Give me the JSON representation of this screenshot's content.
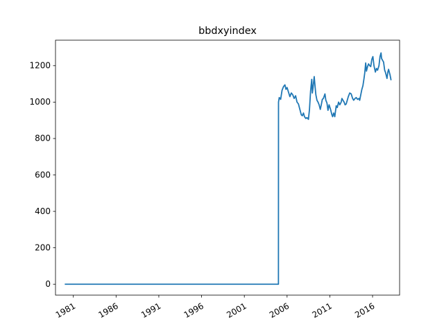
{
  "chart_data": {
    "type": "line",
    "title": "bbdxyindex",
    "xlabel": "",
    "ylabel": "",
    "x_axis_type": "date",
    "xlim": [
      "1978-12-01",
      "2019-03-01"
    ],
    "ylim": [
      -60,
      1340
    ],
    "x_ticks": [
      {
        "date": "1981-01-01",
        "label": "1981"
      },
      {
        "date": "1986-01-01",
        "label": "1986"
      },
      {
        "date": "1991-01-01",
        "label": "1991"
      },
      {
        "date": "1996-01-01",
        "label": "1996"
      },
      {
        "date": "2001-01-01",
        "label": "2001"
      },
      {
        "date": "2006-01-01",
        "label": "2006"
      },
      {
        "date": "2011-01-01",
        "label": "2011"
      },
      {
        "date": "2016-01-01",
        "label": "2016"
      }
    ],
    "y_ticks": [
      {
        "value": 0,
        "label": "0"
      },
      {
        "value": 200,
        "label": "200"
      },
      {
        "value": 400,
        "label": "400"
      },
      {
        "value": 600,
        "label": "600"
      },
      {
        "value": 800,
        "label": "800"
      },
      {
        "value": 1000,
        "label": "1000"
      },
      {
        "value": 1200,
        "label": "1200"
      }
    ],
    "grid": false,
    "series": [
      {
        "color": "#1f77b4",
        "points": [
          [
            "1980-01-01",
            0
          ],
          [
            "2004-12-28",
            0
          ],
          [
            "2004-12-31",
            1000
          ],
          [
            "2005-02-01",
            1025
          ],
          [
            "2005-04-01",
            1015
          ],
          [
            "2005-06-01",
            1065
          ],
          [
            "2005-08-01",
            1085
          ],
          [
            "2005-10-01",
            1095
          ],
          [
            "2005-11-15",
            1070
          ],
          [
            "2006-01-01",
            1080
          ],
          [
            "2006-03-01",
            1055
          ],
          [
            "2006-05-01",
            1030
          ],
          [
            "2006-07-01",
            1050
          ],
          [
            "2006-09-01",
            1040
          ],
          [
            "2006-11-01",
            1020
          ],
          [
            "2007-01-01",
            1035
          ],
          [
            "2007-03-01",
            1000
          ],
          [
            "2007-05-01",
            990
          ],
          [
            "2007-07-01",
            960
          ],
          [
            "2007-09-01",
            930
          ],
          [
            "2007-10-15",
            925
          ],
          [
            "2007-12-01",
            940
          ],
          [
            "2008-01-15",
            920
          ],
          [
            "2008-03-15",
            910
          ],
          [
            "2008-05-01",
            915
          ],
          [
            "2008-07-01",
            905
          ],
          [
            "2008-08-15",
            960
          ],
          [
            "2008-10-01",
            1060
          ],
          [
            "2008-11-20",
            1125
          ],
          [
            "2008-12-15",
            1050
          ],
          [
            "2009-01-15",
            1080
          ],
          [
            "2009-03-05",
            1140
          ],
          [
            "2009-04-15",
            1080
          ],
          [
            "2009-05-15",
            1040
          ],
          [
            "2009-07-01",
            1010
          ],
          [
            "2009-08-15",
            1000
          ],
          [
            "2009-10-01",
            985
          ],
          [
            "2009-11-20",
            960
          ],
          [
            "2010-01-01",
            985
          ],
          [
            "2010-02-15",
            1015
          ],
          [
            "2010-04-01",
            1020
          ],
          [
            "2010-06-07",
            1045
          ],
          [
            "2010-07-15",
            1010
          ],
          [
            "2010-09-01",
            995
          ],
          [
            "2010-10-15",
            955
          ],
          [
            "2010-12-01",
            985
          ],
          [
            "2011-02-01",
            960
          ],
          [
            "2011-04-01",
            930
          ],
          [
            "2011-05-01",
            920
          ],
          [
            "2011-06-15",
            940
          ],
          [
            "2011-08-01",
            920
          ],
          [
            "2011-10-01",
            980
          ],
          [
            "2011-11-15",
            970
          ],
          [
            "2012-01-10",
            1000
          ],
          [
            "2012-03-01",
            985
          ],
          [
            "2012-05-01",
            1000
          ],
          [
            "2012-06-01",
            1020
          ],
          [
            "2012-07-15",
            1010
          ],
          [
            "2012-09-01",
            1000
          ],
          [
            "2012-10-15",
            985
          ],
          [
            "2012-12-01",
            990
          ],
          [
            "2013-01-15",
            1010
          ],
          [
            "2013-03-01",
            1030
          ],
          [
            "2013-05-01",
            1050
          ],
          [
            "2013-07-01",
            1045
          ],
          [
            "2013-09-01",
            1020
          ],
          [
            "2013-10-15",
            1010
          ],
          [
            "2013-12-15",
            1020
          ],
          [
            "2014-02-01",
            1025
          ],
          [
            "2014-04-01",
            1015
          ],
          [
            "2014-06-01",
            1020
          ],
          [
            "2014-07-01",
            1010
          ],
          [
            "2014-08-15",
            1040
          ],
          [
            "2014-10-01",
            1070
          ],
          [
            "2014-11-15",
            1090
          ],
          [
            "2015-01-01",
            1130
          ],
          [
            "2015-02-01",
            1160
          ],
          [
            "2015-03-13",
            1215
          ],
          [
            "2015-04-15",
            1170
          ],
          [
            "2015-06-01",
            1195
          ],
          [
            "2015-07-15",
            1210
          ],
          [
            "2015-09-01",
            1200
          ],
          [
            "2015-10-15",
            1195
          ],
          [
            "2015-12-01",
            1235
          ],
          [
            "2016-01-15",
            1250
          ],
          [
            "2016-03-01",
            1200
          ],
          [
            "2016-05-01",
            1165
          ],
          [
            "2016-06-15",
            1185
          ],
          [
            "2016-08-01",
            1175
          ],
          [
            "2016-10-01",
            1200
          ],
          [
            "2016-11-15",
            1250
          ],
          [
            "2016-12-28",
            1270
          ],
          [
            "2017-01-20",
            1240
          ],
          [
            "2017-03-01",
            1230
          ],
          [
            "2017-04-15",
            1220
          ],
          [
            "2017-06-01",
            1175
          ],
          [
            "2017-07-01",
            1165
          ],
          [
            "2017-08-01",
            1150
          ],
          [
            "2017-09-08",
            1130
          ],
          [
            "2017-10-15",
            1165
          ],
          [
            "2017-11-15",
            1180
          ],
          [
            "2017-12-15",
            1165
          ],
          [
            "2018-01-15",
            1150
          ],
          [
            "2018-02-15",
            1130
          ],
          [
            "2018-03-01",
            1120
          ]
        ]
      }
    ]
  }
}
